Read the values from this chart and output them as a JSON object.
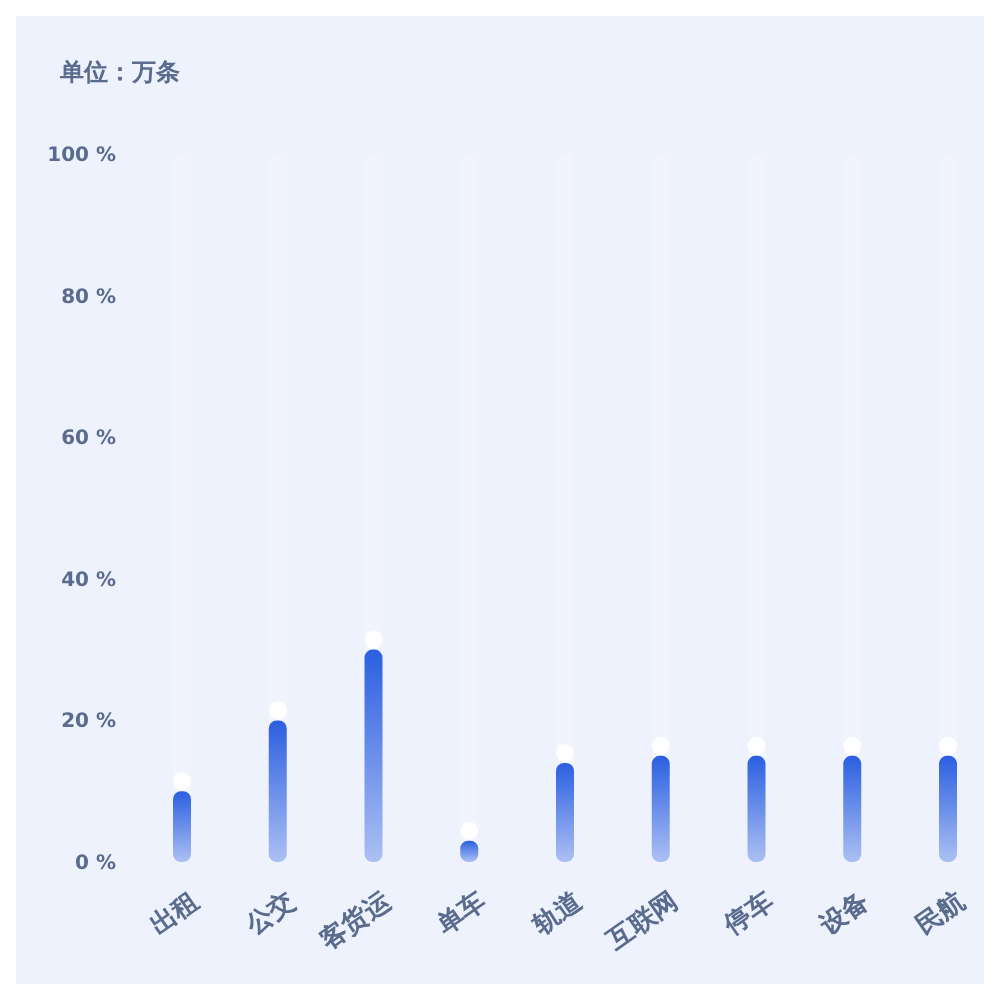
{
  "chart_data": {
    "type": "bar",
    "title": "单位：万条",
    "categories": [
      "出租",
      "公交",
      "客货运",
      "单车",
      "轨道",
      "互联网",
      "停车",
      "设备",
      "民航"
    ],
    "values": [
      10,
      20,
      30,
      3,
      14,
      15,
      15,
      15,
      15
    ],
    "color": "#2b5fe0",
    "ylim": [
      0,
      100
    ],
    "yticks": [
      {
        "value": 0,
        "label": "0 %"
      },
      {
        "value": 20,
        "label": "20 %"
      },
      {
        "value": 40,
        "label": "40 %"
      },
      {
        "value": 60,
        "label": "60 %"
      },
      {
        "value": 80,
        "label": "80 %"
      },
      {
        "value": 100,
        "label": "100 %"
      }
    ],
    "grid": false
  }
}
